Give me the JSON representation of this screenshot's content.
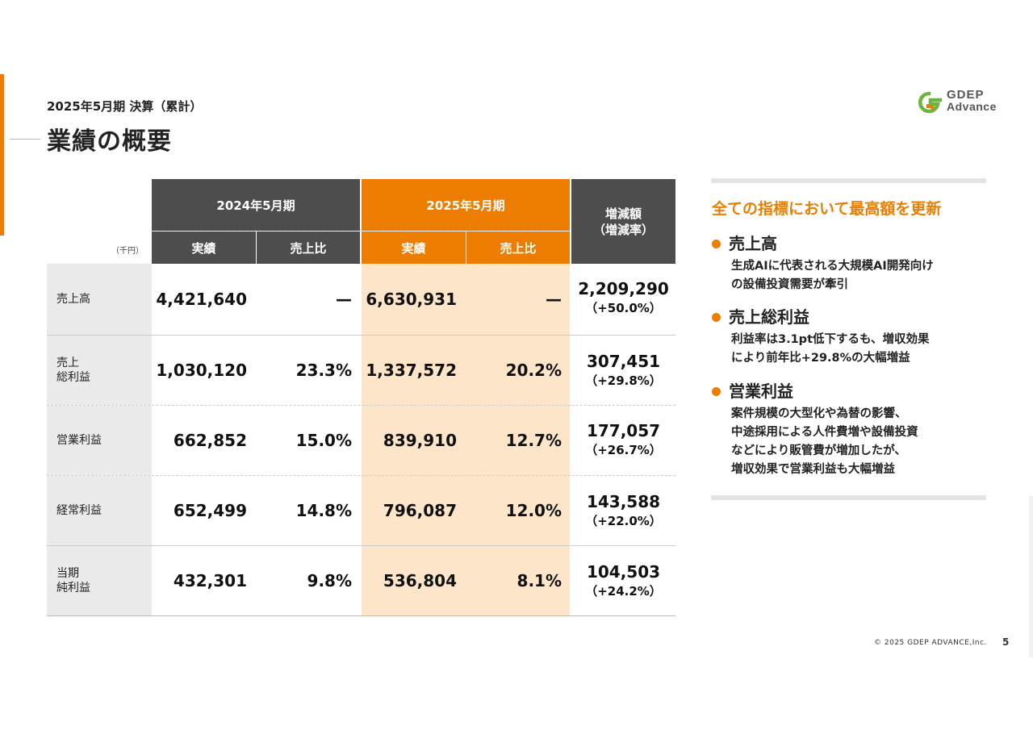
{
  "header": {
    "subtitle": "2025年5月期 決算（累計）",
    "title": "業績の概要"
  },
  "logo": {
    "line1": "GDEP",
    "line2": "Advance"
  },
  "table": {
    "unit": "（千円）",
    "period_prev": "2024年5月期",
    "period_curr": "2025年5月期",
    "col_actual": "実績",
    "col_ratio": "売上比",
    "col_diff_line1": "増減額",
    "col_diff_line2": "（増減率）",
    "rows": [
      {
        "label1": "売上高",
        "label2": "",
        "prev_actual": "4,421,640",
        "prev_ratio": "—",
        "curr_actual": "6,630,931",
        "curr_ratio": "—",
        "diff": "2,209,290",
        "rate": "（+50.0%）"
      },
      {
        "label1": "売上",
        "label2": "総利益",
        "prev_actual": "1,030,120",
        "prev_ratio": "23.3%",
        "curr_actual": "1,337,572",
        "curr_ratio": "20.2%",
        "diff": "307,451",
        "rate": "（+29.8%）"
      },
      {
        "label1": "営業利益",
        "label2": "",
        "prev_actual": "662,852",
        "prev_ratio": "15.0%",
        "curr_actual": "839,910",
        "curr_ratio": "12.7%",
        "diff": "177,057",
        "rate": "（+26.7%）"
      },
      {
        "label1": "経常利益",
        "label2": "",
        "prev_actual": "652,499",
        "prev_ratio": "14.8%",
        "curr_actual": "796,087",
        "curr_ratio": "12.0%",
        "diff": "143,588",
        "rate": "（+22.0%）"
      },
      {
        "label1": "当期",
        "label2": "純利益",
        "prev_actual": "432,301",
        "prev_ratio": "9.8%",
        "curr_actual": "536,804",
        "curr_ratio": "8.1%",
        "diff": "104,503",
        "rate": "（+24.2%）"
      }
    ]
  },
  "panel": {
    "heading": "全ての指標において最高額を更新",
    "points": [
      {
        "title": "売上高",
        "lines": [
          "生成AIに代表される大規模AI開発向け",
          "の設備投資需要が牽引"
        ]
      },
      {
        "title": "売上総利益",
        "lines": [
          "利益率は3.1pt低下するも、増収効果",
          "により前年比+29.8%の大幅増益"
        ]
      },
      {
        "title": "営業利益",
        "lines": [
          "案件規模の大型化や為替の影響、",
          "中途採用による人件費増や設備投資",
          "などにより販管費が増加したが、",
          "増収効果で営業利益も大幅増益"
        ]
      }
    ]
  },
  "footer": {
    "copyright": "© 2025 GDEP ADVANCE,Inc.",
    "page": "5"
  },
  "colors": {
    "accent": "#ED7D00",
    "header_dark": "#4d4d4d",
    "band": "#FDE5C9"
  }
}
